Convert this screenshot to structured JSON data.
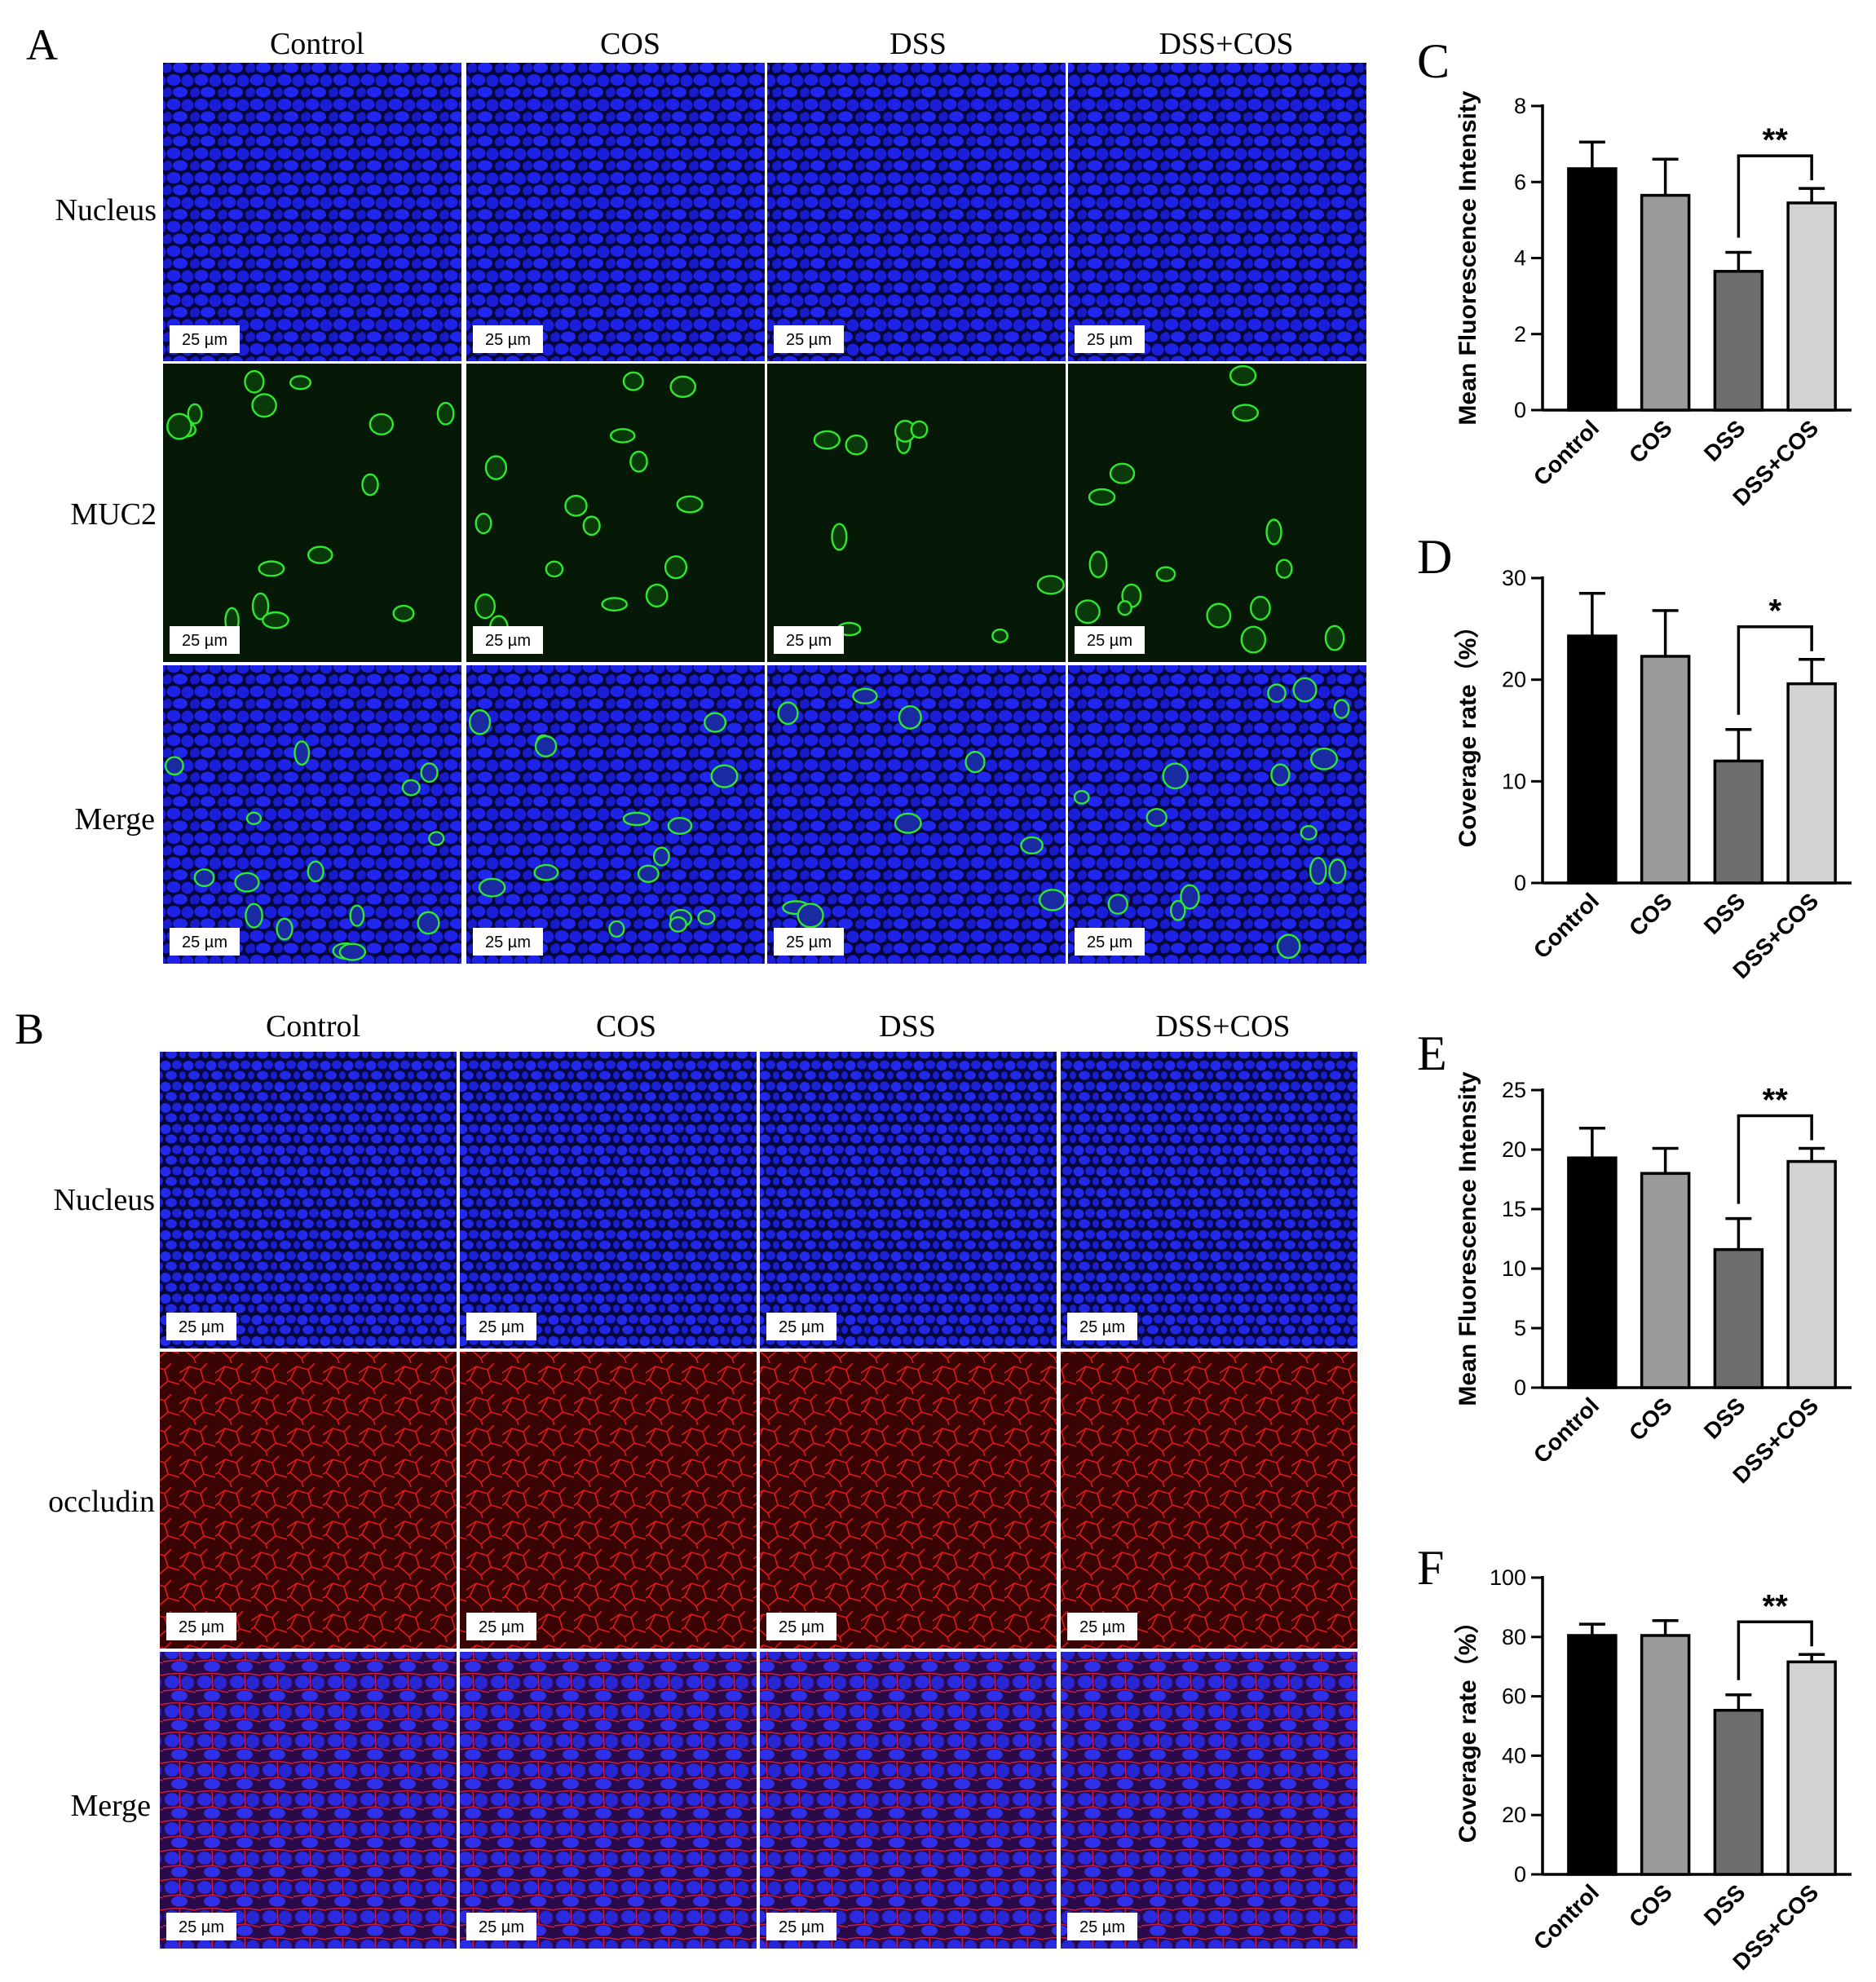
{
  "panel_a": {
    "letter": "A",
    "columns": [
      "Control",
      "COS",
      "DSS",
      "DSS+COS"
    ],
    "rows": [
      "Nucleus",
      "MUC2",
      "Merge"
    ],
    "scale_bar": "25 µm"
  },
  "panel_b": {
    "letter": "B",
    "columns": [
      "Control",
      "COS",
      "DSS",
      "DSS+COS"
    ],
    "rows": [
      "Nucleus",
      "occludin",
      "Merge"
    ],
    "scale_bar": "25 µm"
  },
  "colors": {
    "nucleus": "#1a1ee0",
    "muc2": "#2ee82e",
    "occludin": "#e81c1c",
    "bar_fills": [
      "#000000",
      "#9a9a9a",
      "#6e6e6e",
      "#d2d2d2"
    ]
  },
  "chart_data": [
    {
      "letter": "C",
      "type": "bar",
      "categories": [
        "Control",
        "COS",
        "DSS",
        "DSS+COS"
      ],
      "values": [
        6.35,
        5.65,
        3.65,
        5.45
      ],
      "errors": [
        0.7,
        0.95,
        0.5,
        0.38
      ],
      "ylabel": "Mean Fluorescence Intensity",
      "xlabel": "",
      "ylim": [
        0,
        8
      ],
      "yticks": [
        0,
        2,
        4,
        6,
        8
      ],
      "significance": {
        "from": "DSS",
        "to": "DSS+COS",
        "label": "**"
      }
    },
    {
      "letter": "D",
      "type": "bar",
      "categories": [
        "Control",
        "COS",
        "DSS",
        "DSS+COS"
      ],
      "values": [
        24.3,
        22.3,
        12.0,
        19.6
      ],
      "errors": [
        4.2,
        4.5,
        3.1,
        2.4
      ],
      "ylabel": "Coverage rate（%）",
      "xlabel": "",
      "ylim": [
        0,
        30
      ],
      "yticks": [
        0,
        10,
        20,
        30
      ],
      "significance": {
        "from": "DSS",
        "to": "DSS+COS",
        "label": "*"
      }
    },
    {
      "letter": "E",
      "type": "bar",
      "categories": [
        "Control",
        "COS",
        "DSS",
        "DSS+COS"
      ],
      "values": [
        19.3,
        18.0,
        11.6,
        19.0
      ],
      "errors": [
        2.5,
        2.1,
        2.6,
        1.1
      ],
      "ylabel": "Mean Fluorescence Intensity",
      "xlabel": "",
      "ylim": [
        0,
        25
      ],
      "yticks": [
        0,
        5,
        10,
        15,
        20,
        25
      ],
      "significance": {
        "from": "DSS",
        "to": "DSS+COS",
        "label": "**"
      }
    },
    {
      "letter": "F",
      "type": "bar",
      "categories": [
        "Control",
        "COS",
        "DSS",
        "DSS+COS"
      ],
      "values": [
        80.5,
        80.5,
        55.3,
        71.6
      ],
      "errors": [
        3.8,
        5.0,
        5.2,
        2.5
      ],
      "ylabel": "Coverage rate（%）",
      "xlabel": "",
      "ylim": [
        0,
        100
      ],
      "yticks": [
        0,
        20,
        40,
        60,
        80,
        100
      ],
      "significance": {
        "from": "DSS",
        "to": "DSS+COS",
        "label": "**"
      }
    }
  ]
}
